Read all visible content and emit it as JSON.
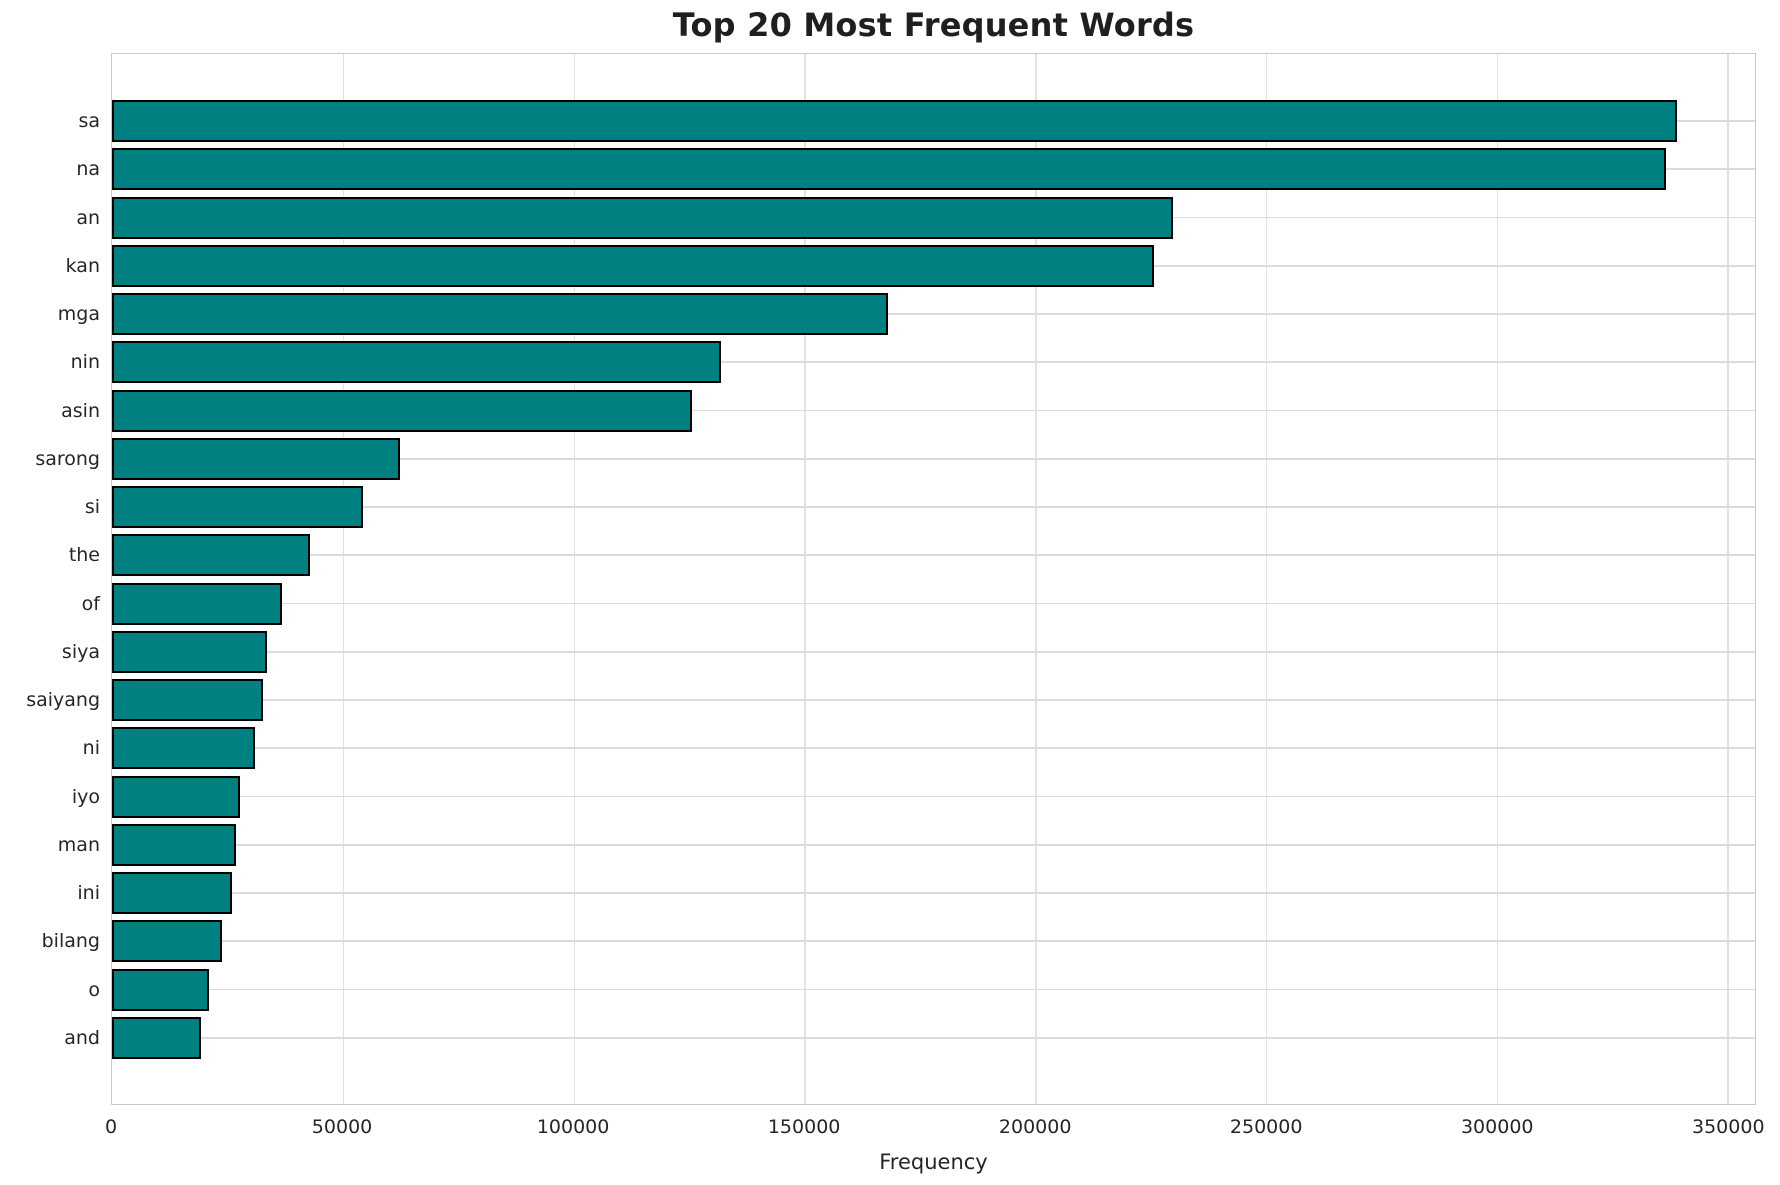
{
  "chart_data": {
    "type": "bar",
    "orientation": "horizontal",
    "title": "Top 20 Most Frequent Words",
    "xlabel": "Frequency",
    "ylabel": "",
    "categories": [
      "sa",
      "na",
      "an",
      "kan",
      "mga",
      "nin",
      "asin",
      "sarong",
      "si",
      "the",
      "of",
      "siya",
      "saiyang",
      "ni",
      "iyo",
      "man",
      "ini",
      "bilang",
      "o",
      "and"
    ],
    "values": [
      339200,
      336800,
      230000,
      225700,
      168200,
      131900,
      125700,
      62500,
      54300,
      42900,
      36900,
      33600,
      32700,
      30900,
      27800,
      26800,
      26000,
      23900,
      21000,
      19300
    ],
    "xticks": [
      0,
      50000,
      100000,
      150000,
      200000,
      250000,
      300000,
      350000
    ],
    "xtick_labels": [
      "0",
      "50000",
      "100000",
      "150000",
      "200000",
      "250000",
      "300000",
      "350000"
    ],
    "xlim": [
      0,
      356000
    ],
    "grid": true,
    "legend": false,
    "bar_color": "#008080",
    "bar_edge_color": "#000000",
    "grid_color": "#dcdcdc",
    "background_color": "#ffffff"
  }
}
